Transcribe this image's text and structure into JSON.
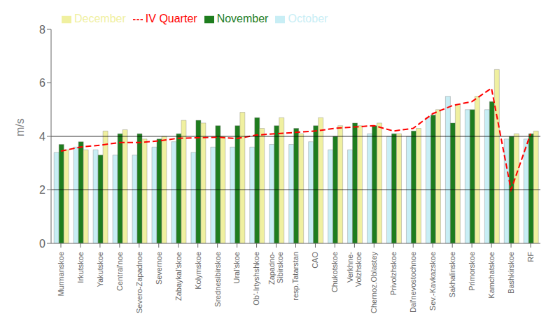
{
  "chart_data": {
    "type": "bar",
    "ylabel": "m/s",
    "categories": [
      "Murmanskoe",
      "Irkutskoe",
      "Yakutskoe",
      "Central'noe",
      "Severo-Zapadnoe",
      "Severnoe",
      "Zabaykal'skoe",
      "Kolymskoe",
      "Srednesibirskoe",
      "Ural'skoe",
      "Ob'-Irtyshshkoe",
      "Zapadno-\nSibirskoe",
      "resp.Tatarstan",
      "CAO",
      "Chukotskoe",
      "Verkhnе-\nVolzhskoe",
      "Chernoz.Oblastey",
      "Privolzhskoe",
      "Dal'nevostochnoe",
      "Sev.-Kavkazskoe",
      "Sakhalinskoe",
      "Primorskoe",
      "Kamchatskoe",
      "Bashkirskoe",
      "RF"
    ],
    "series": [
      {
        "name": "October",
        "color": "#c8eef5",
        "values": [
          3.4,
          3.6,
          3.5,
          3.3,
          3.3,
          3.6,
          3.8,
          3.4,
          3.6,
          3.6,
          3.6,
          3.7,
          3.7,
          3.8,
          3.5,
          3.5,
          4.1,
          4.0,
          4.0,
          4.7,
          5.5,
          5.0,
          5.0,
          3.9,
          3.9
        ]
      },
      {
        "name": "November",
        "color": "#1e7d1e",
        "values": [
          3.7,
          3.8,
          3.3,
          4.1,
          4.1,
          3.9,
          4.1,
          4.6,
          4.4,
          4.4,
          4.7,
          4.4,
          4.3,
          4.4,
          4.0,
          4.5,
          4.4,
          4.1,
          4.2,
          4.8,
          4.5,
          5.0,
          5.3,
          4.0,
          4.1
        ]
      },
      {
        "name": "December",
        "color": "#f0f0a0",
        "values": [
          3.5,
          3.5,
          4.2,
          4.25,
          3.9,
          4.0,
          4.6,
          4.5,
          4.0,
          4.9,
          4.3,
          4.7,
          4.1,
          4.7,
          4.4,
          4.4,
          4.5,
          4.1,
          4.3,
          5.0,
          5.2,
          5.5,
          6.5,
          4.1,
          4.2
        ]
      },
      {
        "name": "IV Quarter",
        "type": "line",
        "color": "#ff0000",
        "line_style": "dashed",
        "values": [
          3.45,
          3.6,
          3.67,
          3.77,
          3.77,
          3.83,
          3.93,
          3.95,
          3.97,
          3.92,
          4.05,
          4.1,
          4.15,
          4.2,
          4.3,
          4.35,
          4.4,
          4.2,
          4.3,
          4.85,
          5.15,
          5.3,
          5.8,
          2.0,
          4.1
        ]
      }
    ],
    "ylim": [
      0,
      8
    ],
    "yticks": [
      0,
      2,
      4,
      6,
      8
    ],
    "hlines": [
      2,
      4
    ],
    "grid": false,
    "legend": "upper left"
  }
}
